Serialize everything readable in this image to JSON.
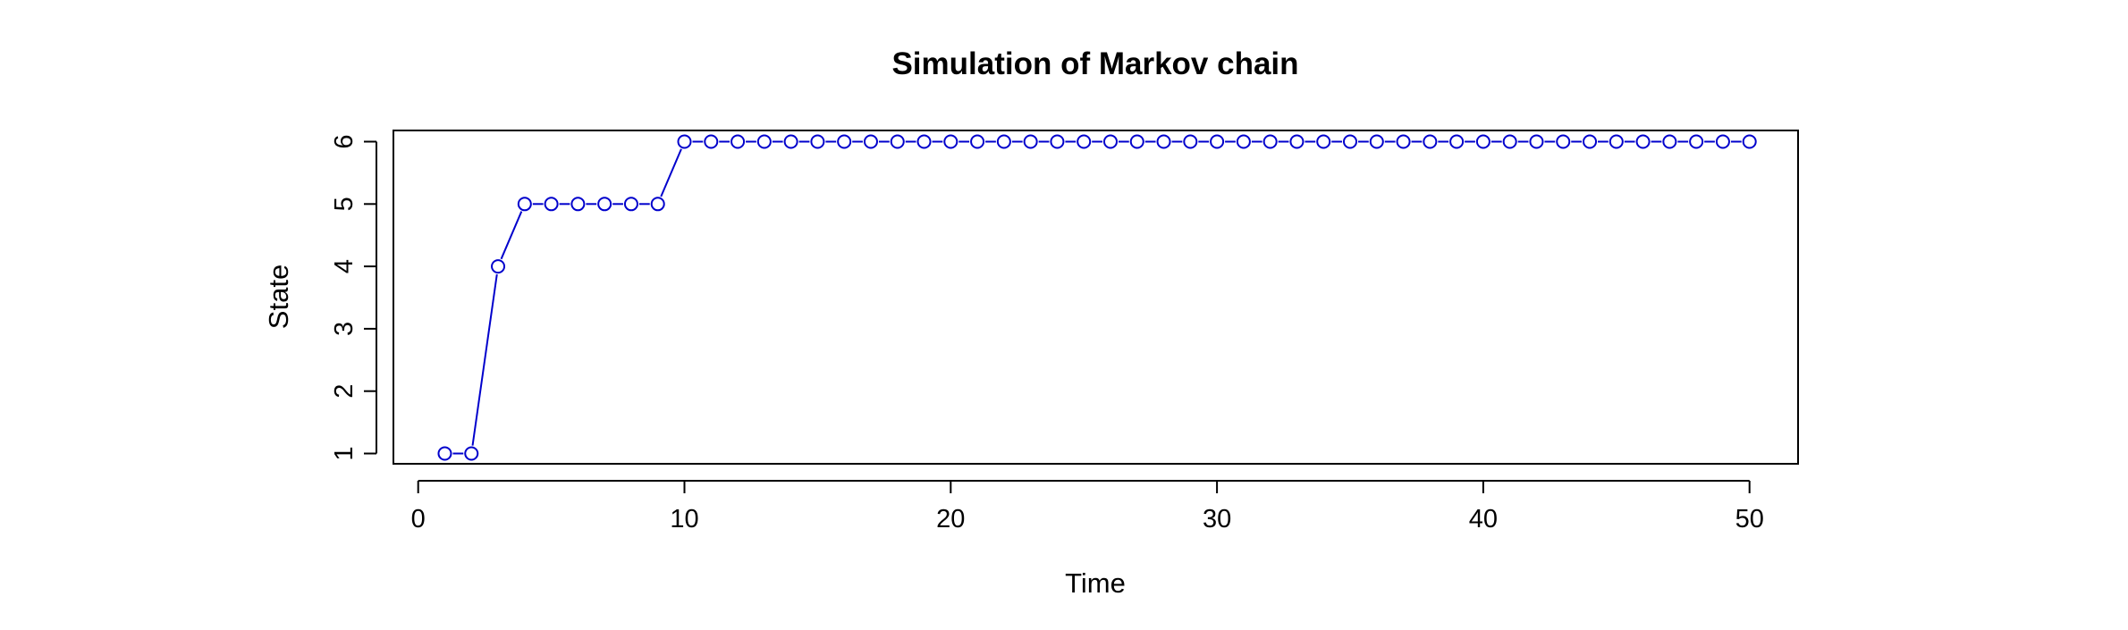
{
  "chart_data": {
    "type": "line",
    "title": "Simulation of Markov chain",
    "xlabel": "Time",
    "ylabel": "State",
    "xlim": [
      0,
      52
    ],
    "ylim": [
      1,
      6
    ],
    "x_ticks": [
      "0",
      "10",
      "20",
      "30",
      "40",
      "50"
    ],
    "y_ticks": [
      "1",
      "2",
      "3",
      "4",
      "5",
      "6"
    ],
    "grid": false,
    "legend": "none",
    "marker": "open-circle",
    "line_color": "#0000cc",
    "series": [
      {
        "x": [
          1,
          2,
          3,
          4,
          5,
          6,
          7,
          8,
          9,
          10,
          11,
          12,
          13,
          14,
          15,
          16,
          17,
          18,
          19,
          20,
          21,
          22,
          23,
          24,
          25,
          26,
          27,
          28,
          29,
          30,
          31,
          32,
          33,
          34,
          35,
          36,
          37,
          38,
          39,
          40,
          41,
          42,
          43,
          44,
          45,
          46,
          47,
          48,
          49,
          50
        ],
        "values": [
          1,
          1,
          4,
          5,
          5,
          5,
          5,
          5,
          5,
          6,
          6,
          6,
          6,
          6,
          6,
          6,
          6,
          6,
          6,
          6,
          6,
          6,
          6,
          6,
          6,
          6,
          6,
          6,
          6,
          6,
          6,
          6,
          6,
          6,
          6,
          6,
          6,
          6,
          6,
          6,
          6,
          6,
          6,
          6,
          6,
          6,
          6,
          6,
          6,
          6
        ]
      }
    ]
  }
}
